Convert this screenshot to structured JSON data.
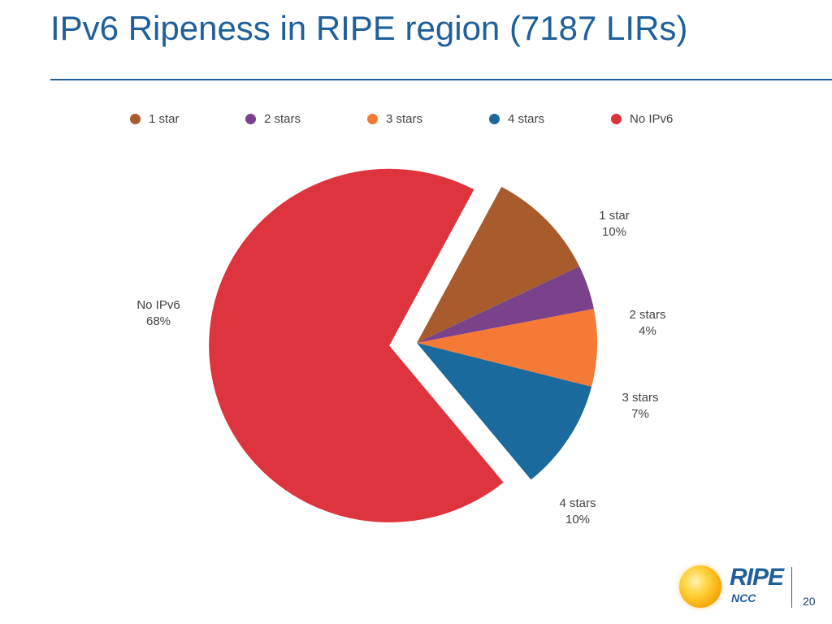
{
  "slide": {
    "title": "IPv6 Ripeness in RIPE region (7187 LIRs)",
    "page_number": "20",
    "logo": {
      "name": "RIPE",
      "sub": "NCC"
    }
  },
  "colors": {
    "title": "#1f5f9a",
    "1 star": "#a85c2e",
    "2 stars": "#7a428a",
    "3 stars": "#f47a35",
    "4 stars": "#1a6a9e",
    "No IPv6": "#de343d"
  },
  "chart_data": {
    "type": "pie",
    "legend_position": "top",
    "legend": [
      "1 star",
      "2 stars",
      "3 stars",
      "4 stars",
      "No IPv6"
    ],
    "slices": [
      {
        "name": "1 star",
        "value": 10,
        "label": "10%",
        "color": "#a85c2e"
      },
      {
        "name": "2 stars",
        "value": 4,
        "label": "4%",
        "color": "#7a428a"
      },
      {
        "name": "3 stars",
        "value": 7,
        "label": "7%",
        "color": "#f47a35"
      },
      {
        "name": "4 stars",
        "value": 10,
        "label": "10%",
        "color": "#1a6a9e"
      },
      {
        "name": "No IPv6",
        "value": 68,
        "label": "68%",
        "color": "#de343d",
        "exploded": true
      }
    ]
  }
}
